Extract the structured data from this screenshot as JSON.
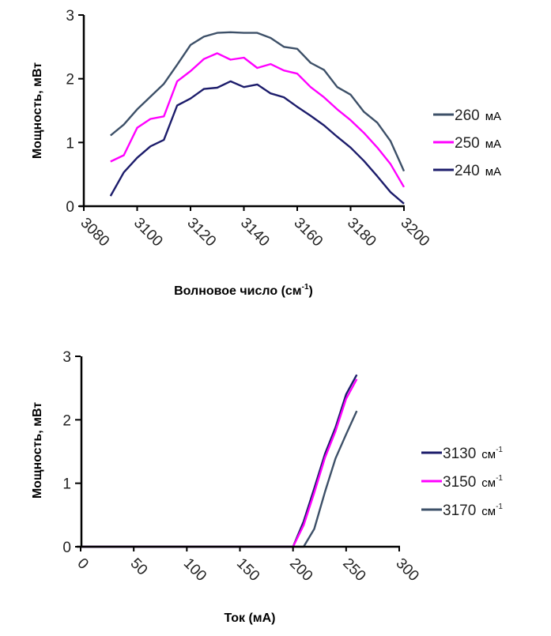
{
  "chart_data": [
    {
      "type": "line",
      "title": "",
      "xlabel": "Волновое число (см-1)",
      "xlabel_main": "Волновое число (см",
      "xlabel_sup": "-1",
      "xlabel_close": ")",
      "ylabel": "Мощность, мВт",
      "xlim": [
        3080,
        3200
      ],
      "ylim": [
        0,
        3
      ],
      "x_ticks": [
        "3080",
        "3100",
        "3120",
        "3140",
        "3160",
        "3180",
        "3200"
      ],
      "y_ticks": [
        "0",
        "1",
        "2",
        "3"
      ],
      "grid": false,
      "legend_position": "right",
      "x": [
        3090,
        3095,
        3100,
        3105,
        3110,
        3115,
        3120,
        3125,
        3130,
        3135,
        3140,
        3145,
        3150,
        3155,
        3160,
        3165,
        3170,
        3175,
        3180,
        3185,
        3190,
        3195,
        3200
      ],
      "series": [
        {
          "name": "260 мА",
          "value_label": "260",
          "unit": "мА",
          "color": "#3d5068",
          "values": [
            1.11,
            1.28,
            1.52,
            1.72,
            1.92,
            2.22,
            2.53,
            2.66,
            2.72,
            2.73,
            2.72,
            2.72,
            2.64,
            2.5,
            2.47,
            2.25,
            2.14,
            1.87,
            1.75,
            1.48,
            1.31,
            1.02,
            0.55
          ]
        },
        {
          "name": "250 мА",
          "value_label": "250",
          "unit": "мА",
          "color": "#ff00ff",
          "values": [
            0.7,
            0.8,
            1.23,
            1.37,
            1.41,
            1.96,
            2.12,
            2.31,
            2.4,
            2.3,
            2.33,
            2.17,
            2.23,
            2.13,
            2.08,
            1.87,
            1.71,
            1.52,
            1.35,
            1.15,
            0.92,
            0.66,
            0.3
          ]
        },
        {
          "name": "240 мА",
          "value_label": "240",
          "unit": "мА",
          "color": "#1c1c6b",
          "values": [
            0.16,
            0.53,
            0.76,
            0.94,
            1.04,
            1.58,
            1.69,
            1.84,
            1.86,
            1.96,
            1.87,
            1.91,
            1.77,
            1.71,
            1.56,
            1.42,
            1.27,
            1.09,
            0.92,
            0.71,
            0.47,
            0.22,
            0.04
          ]
        }
      ]
    },
    {
      "type": "line",
      "title": "",
      "xlabel": "Ток (мА)",
      "ylabel": "Мощность, мВт",
      "xlim": [
        0,
        300
      ],
      "ylim": [
        0,
        3
      ],
      "x_ticks": [
        "0",
        "50",
        "100",
        "150",
        "200",
        "250",
        "300"
      ],
      "y_ticks": [
        "0",
        "1",
        "2",
        "3"
      ],
      "grid": false,
      "legend_position": "right",
      "series": [
        {
          "name": "3130 см-1",
          "value_label": "3130",
          "unit": "см",
          "unit_sup": "-1",
          "color": "#1c1c6b",
          "x": [
            0,
            200,
            210,
            220,
            230,
            240,
            250,
            260
          ],
          "values": [
            0,
            0,
            0.4,
            0.92,
            1.46,
            1.88,
            2.4,
            2.71
          ]
        },
        {
          "name": "3150 см-1",
          "value_label": "3150",
          "unit": "см",
          "unit_sup": "-1",
          "color": "#ff00ff",
          "x": [
            0,
            200,
            210,
            220,
            230,
            240,
            250,
            260
          ],
          "values": [
            0,
            0,
            0.34,
            0.85,
            1.4,
            1.82,
            2.33,
            2.64
          ]
        },
        {
          "name": "3170 см-1",
          "value_label": "3170",
          "unit": "см",
          "unit_sup": "-1",
          "color": "#3d5068",
          "x": [
            0,
            210,
            220,
            230,
            240,
            250,
            260
          ],
          "values": [
            0,
            0,
            0.28,
            0.86,
            1.39,
            1.77,
            2.14
          ]
        }
      ]
    }
  ]
}
